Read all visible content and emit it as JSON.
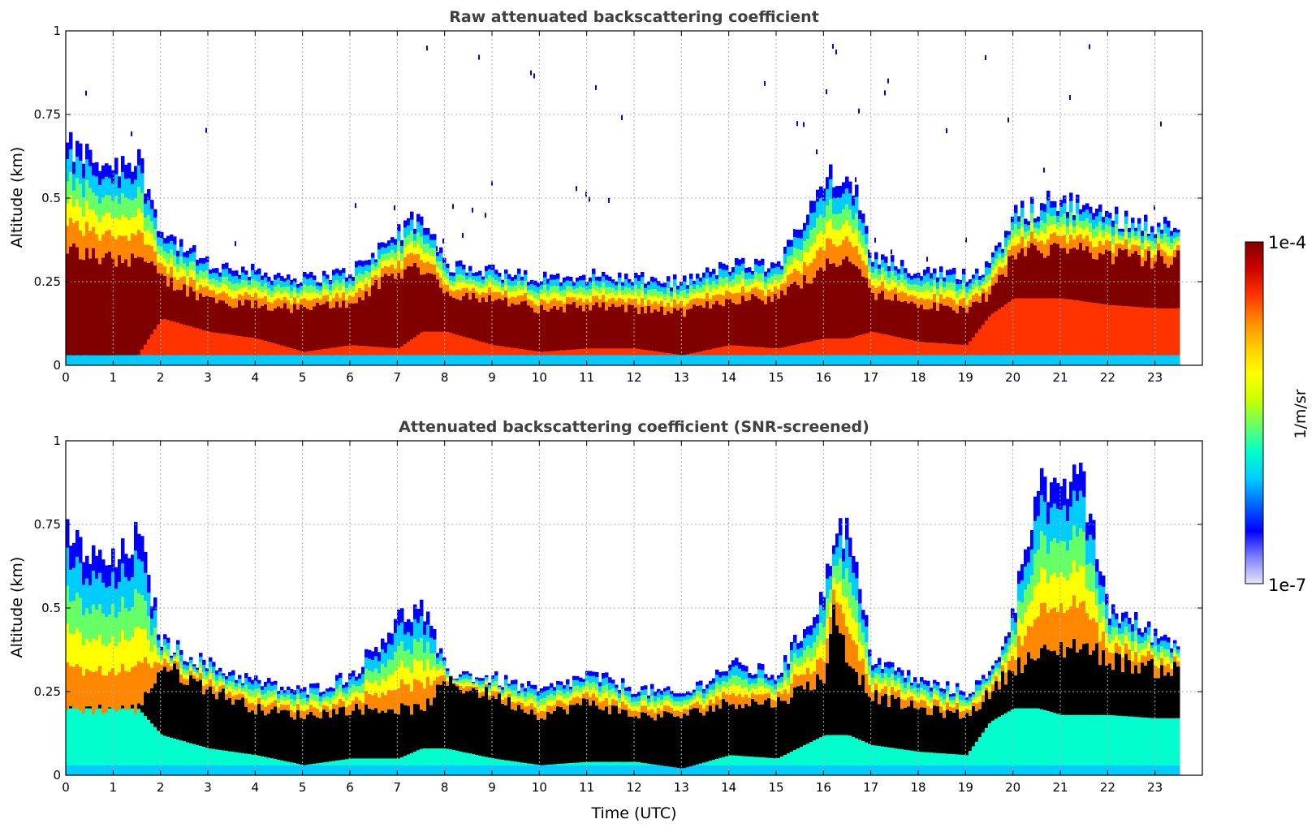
{
  "chart_data": [
    {
      "type": "heatmap",
      "title": "Raw attenuated backscattering coefficient",
      "ylabel": "Altitude (km)",
      "xlabel": "",
      "xlim": [
        0,
        24
      ],
      "ylim": [
        0,
        1
      ],
      "x_ticks": [
        "0",
        "1",
        "2",
        "3",
        "4",
        "5",
        "6",
        "7",
        "8",
        "9",
        "10",
        "11",
        "12",
        "13",
        "14",
        "15",
        "16",
        "17",
        "18",
        "19",
        "20",
        "21",
        "22",
        "23"
      ],
      "y_ticks": [
        "0",
        "0.25",
        "0.5",
        "0.75",
        "1"
      ],
      "grid": true,
      "data_extent_hours": [
        0,
        23.5
      ],
      "layer_top_km": {
        "hours": [
          0,
          0.5,
          1,
          1.5,
          2,
          3,
          4,
          5,
          6,
          7,
          7.5,
          8,
          9,
          10,
          11,
          12,
          13,
          14,
          15,
          16,
          16.5,
          17,
          18,
          19,
          19.5,
          20,
          21,
          22,
          23,
          23.5
        ],
        "values": [
          0.65,
          0.62,
          0.6,
          0.62,
          0.4,
          0.3,
          0.28,
          0.26,
          0.28,
          0.4,
          0.45,
          0.3,
          0.28,
          0.26,
          0.27,
          0.26,
          0.25,
          0.3,
          0.3,
          0.55,
          0.6,
          0.33,
          0.28,
          0.27,
          0.3,
          0.45,
          0.5,
          0.45,
          0.42,
          0.42
        ]
      },
      "dense_core_km": {
        "bottom": [
          0.03,
          0.03,
          0.03,
          0.03,
          0.14,
          0.1,
          0.08,
          0.04,
          0.06,
          0.05,
          0.1,
          0.1,
          0.06,
          0.04,
          0.05,
          0.05,
          0.03,
          0.06,
          0.05,
          0.08,
          0.08,
          0.1,
          0.07,
          0.06,
          0.15,
          0.2,
          0.2,
          0.18,
          0.17,
          0.17
        ],
        "top": [
          0.35,
          0.33,
          0.32,
          0.33,
          0.26,
          0.2,
          0.18,
          0.17,
          0.19,
          0.28,
          0.3,
          0.22,
          0.2,
          0.17,
          0.18,
          0.17,
          0.16,
          0.2,
          0.2,
          0.3,
          0.32,
          0.22,
          0.18,
          0.17,
          0.22,
          0.33,
          0.36,
          0.33,
          0.32,
          0.32
        ]
      }
    },
    {
      "type": "heatmap",
      "title": "Attenuated backscattering coefficient (SNR-screened)",
      "ylabel": "Altitude (km)",
      "xlabel": "Time (UTC)",
      "xlim": [
        0,
        24
      ],
      "ylim": [
        0,
        1
      ],
      "x_ticks": [
        "0",
        "1",
        "2",
        "3",
        "4",
        "5",
        "6",
        "7",
        "8",
        "9",
        "10",
        "11",
        "12",
        "13",
        "14",
        "15",
        "16",
        "17",
        "18",
        "19",
        "20",
        "21",
        "22",
        "23"
      ],
      "y_ticks": [
        "0",
        "0.25",
        "0.5",
        "0.75",
        "1"
      ],
      "grid": true,
      "data_extent_hours": [
        0,
        23.5
      ],
      "layer_top_km": {
        "hours": [
          0,
          0.5,
          1,
          1.5,
          2,
          3,
          4,
          5,
          6,
          7,
          7.5,
          8,
          9,
          10,
          11,
          12,
          13,
          14,
          15,
          16,
          16.2,
          16.5,
          17,
          18,
          19,
          19.5,
          20,
          20.5,
          21,
          21.3,
          22,
          23,
          23.5
        ],
        "values": [
          0.72,
          0.65,
          0.63,
          0.72,
          0.4,
          0.33,
          0.28,
          0.25,
          0.3,
          0.47,
          0.5,
          0.31,
          0.29,
          0.25,
          0.3,
          0.26,
          0.24,
          0.33,
          0.3,
          0.55,
          0.75,
          0.72,
          0.35,
          0.28,
          0.25,
          0.3,
          0.5,
          0.9,
          0.8,
          0.95,
          0.5,
          0.42,
          0.4
        ]
      },
      "black_core_km": {
        "bottom": [
          0.2,
          0.2,
          0.2,
          0.2,
          0.12,
          0.08,
          0.06,
          0.03,
          0.05,
          0.05,
          0.08,
          0.08,
          0.05,
          0.03,
          0.04,
          0.04,
          0.02,
          0.06,
          0.05,
          0.12,
          0.12,
          0.12,
          0.09,
          0.07,
          0.06,
          0.16,
          0.2,
          0.2,
          0.18,
          0.18,
          0.18,
          0.17,
          0.17
        ],
        "top": [
          0.2,
          0.2,
          0.2,
          0.2,
          0.33,
          0.26,
          0.2,
          0.18,
          0.2,
          0.2,
          0.2,
          0.28,
          0.24,
          0.18,
          0.22,
          0.18,
          0.18,
          0.22,
          0.22,
          0.3,
          0.5,
          0.35,
          0.24,
          0.2,
          0.18,
          0.25,
          0.33,
          0.36,
          0.38,
          0.4,
          0.35,
          0.32,
          0.32
        ]
      }
    }
  ],
  "colorbar": {
    "label": "1/m/sr",
    "max_label": "1e-4",
    "min_label": "1e-7",
    "colormap": [
      "#e6e6fa",
      "#8080ff",
      "#0000ff",
      "#0066ff",
      "#00ccff",
      "#00ffcc",
      "#66ff66",
      "#ccff00",
      "#ffff00",
      "#ffcc00",
      "#ff8800",
      "#ff3300",
      "#cc0000",
      "#800000"
    ]
  }
}
